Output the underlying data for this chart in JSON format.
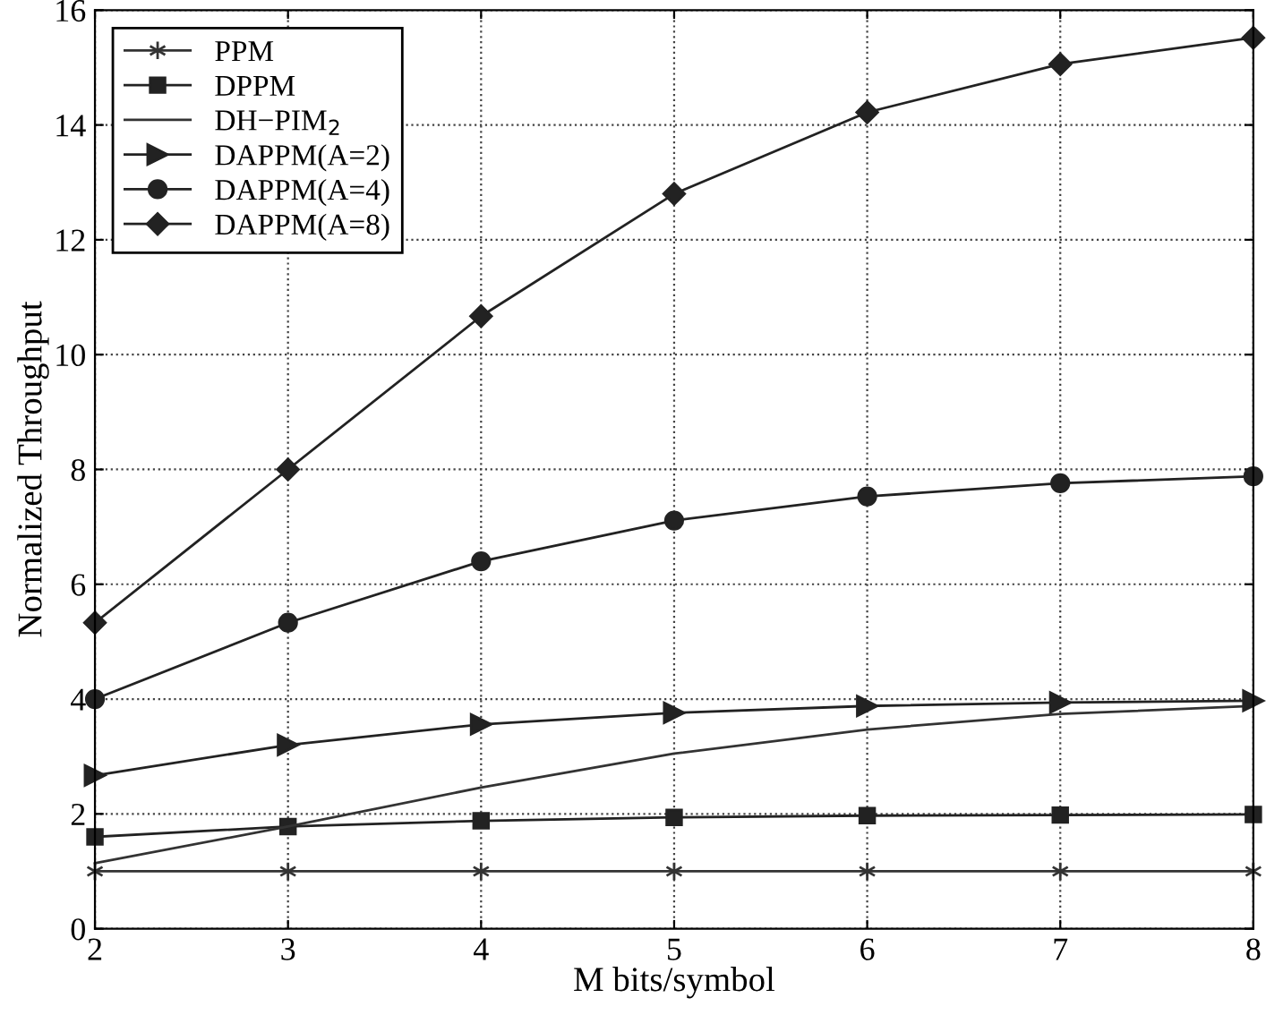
{
  "chart_data": {
    "type": "line",
    "xlabel": "M bits/symbol",
    "ylabel": "Normalized Throughput",
    "x": [
      2,
      3,
      4,
      5,
      6,
      7,
      8
    ],
    "series": [
      {
        "name": "PPM",
        "color": "#333333",
        "marker": "cross",
        "values": [
          1,
          1,
          1,
          1,
          1,
          1,
          1
        ]
      },
      {
        "name": "DPPM",
        "color": "#222222",
        "marker": "square",
        "values": [
          1.6,
          1.78,
          1.88,
          1.94,
          1.97,
          1.98,
          1.99
        ]
      },
      {
        "name": "DH−PIM$_{2}$",
        "color": "#333333",
        "marker": "none",
        "values": [
          1.14,
          1.78,
          2.46,
          3.05,
          3.47,
          3.74,
          3.88
        ]
      },
      {
        "name": "DAPPM(A=2)",
        "color": "#222222",
        "marker": "triangle",
        "values": [
          2.67,
          3.2,
          3.56,
          3.76,
          3.88,
          3.94,
          3.97
        ]
      },
      {
        "name": "DAPPM(A=4)",
        "color": "#222222",
        "marker": "circle",
        "values": [
          4.0,
          5.33,
          6.4,
          7.11,
          7.53,
          7.76,
          7.88
        ]
      },
      {
        "name": "DAPPM(A=8)",
        "color": "#222222",
        "marker": "diamond",
        "values": [
          5.33,
          8.0,
          10.67,
          12.8,
          14.22,
          15.06,
          15.52
        ]
      }
    ],
    "xlim": [
      2,
      8
    ],
    "xticks": [
      2,
      3,
      4,
      5,
      6,
      7,
      8
    ],
    "ylim": [
      0,
      16
    ],
    "yticks": [
      0,
      2,
      4,
      6,
      8,
      10,
      12,
      14,
      16
    ],
    "grid": true,
    "legend": "top left"
  }
}
